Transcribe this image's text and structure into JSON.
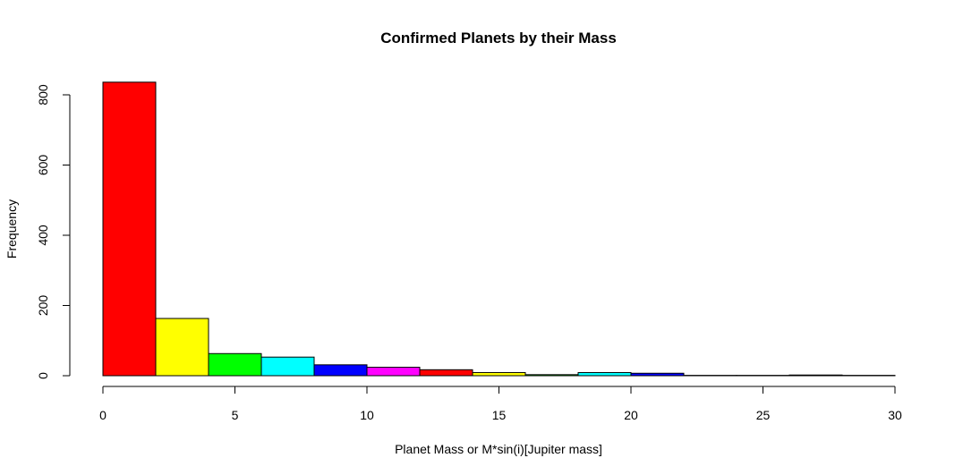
{
  "chart_data": {
    "type": "bar",
    "title": "Confirmed Planets by their Mass",
    "xlabel": "Planet Mass or M*sin(i)[Jupiter mass]",
    "ylabel": "Frequency",
    "bins": [
      {
        "from": 0,
        "to": 2,
        "value": 836,
        "color": "#FF0000"
      },
      {
        "from": 2,
        "to": 4,
        "value": 163,
        "color": "#FFFF00"
      },
      {
        "from": 4,
        "to": 6,
        "value": 63,
        "color": "#00FF00"
      },
      {
        "from": 6,
        "to": 8,
        "value": 53,
        "color": "#00FFFF"
      },
      {
        "from": 8,
        "to": 10,
        "value": 31,
        "color": "#0000FF"
      },
      {
        "from": 10,
        "to": 12,
        "value": 24,
        "color": "#FF00FF"
      },
      {
        "from": 12,
        "to": 14,
        "value": 17,
        "color": "#FF0000"
      },
      {
        "from": 14,
        "to": 16,
        "value": 9,
        "color": "#FFFF00"
      },
      {
        "from": 16,
        "to": 18,
        "value": 3,
        "color": "#00FF00"
      },
      {
        "from": 18,
        "to": 20,
        "value": 9,
        "color": "#00FFFF"
      },
      {
        "from": 20,
        "to": 22,
        "value": 7,
        "color": "#0000FF"
      },
      {
        "from": 22,
        "to": 24,
        "value": 1,
        "color": "#FF00FF"
      },
      {
        "from": 24,
        "to": 26,
        "value": 1,
        "color": "#FF0000"
      },
      {
        "from": 26,
        "to": 28,
        "value": 2,
        "color": "#FFFF00"
      },
      {
        "from": 28,
        "to": 30,
        "value": 1,
        "color": "#00FF00"
      }
    ],
    "xlim": [
      0,
      30
    ],
    "ylim": [
      0,
      836
    ],
    "x_ticks": [
      0,
      5,
      10,
      15,
      20,
      25,
      30
    ],
    "x_tick_labels": [
      "0",
      "5",
      "10",
      "15",
      "20",
      "25",
      "30"
    ],
    "y_ticks": [
      0,
      200,
      400,
      600,
      800
    ],
    "y_tick_labels": [
      "0",
      "200",
      "400",
      "600",
      "800"
    ],
    "grid": false,
    "legend": "none"
  }
}
